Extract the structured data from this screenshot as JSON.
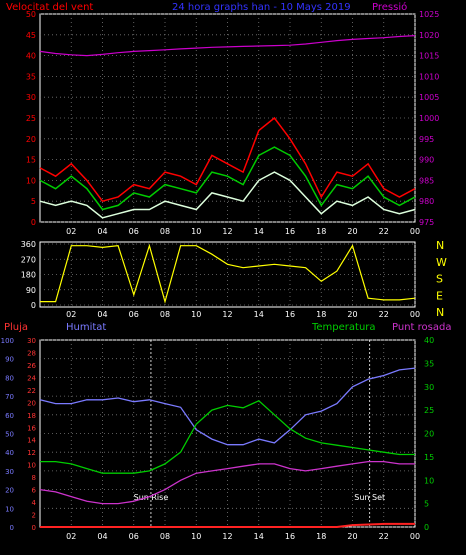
{
  "chart_data": [
    {
      "type": "line",
      "title": "24 hora graphs han - 10 Mays 2019",
      "left_axis_label": "Velocitat del vent",
      "right_axis_label": "Pressió",
      "left_range": [
        0,
        50
      ],
      "left_ticks": [
        "0",
        "5",
        "10",
        "15",
        "20",
        "25",
        "30",
        "35",
        "40",
        "45",
        "50"
      ],
      "right_range": [
        975,
        1025
      ],
      "right_ticks": [
        "975",
        "980",
        "985",
        "990",
        "995",
        "1000",
        "1005",
        "1010",
        "1015",
        "1020",
        "1025"
      ],
      "x_ticks": [
        "02",
        "04",
        "06",
        "08",
        "10",
        "12",
        "14",
        "16",
        "18",
        "20",
        "22",
        "00"
      ],
      "x": [
        0,
        1,
        2,
        3,
        4,
        5,
        6,
        7,
        8,
        9,
        10,
        11,
        12,
        13,
        14,
        15,
        16,
        17,
        18,
        19,
        20,
        21,
        22,
        23,
        24
      ],
      "series": [
        {
          "color": "#ff0000",
          "values": [
            13,
            11,
            14,
            10,
            5,
            6,
            9,
            8,
            12,
            11,
            9,
            16,
            14,
            12,
            22,
            25,
            20,
            14,
            6,
            12,
            11,
            14,
            8,
            6,
            8
          ]
        },
        {
          "color": "#00cc00",
          "values": [
            10,
            8,
            11,
            8,
            3,
            4,
            7,
            6,
            9,
            8,
            7,
            12,
            11,
            9,
            16,
            18,
            16,
            11,
            4,
            9,
            8,
            11,
            6,
            4,
            6
          ]
        },
        {
          "color": "#ddffdd",
          "values": [
            5,
            4,
            5,
            4,
            1,
            2,
            3,
            3,
            5,
            4,
            3,
            7,
            6,
            5,
            10,
            12,
            10,
            6,
            2,
            5,
            4,
            6,
            3,
            2,
            3
          ]
        },
        {
          "color": "#cc00cc",
          "axis": "right",
          "values": [
            1016,
            1015.5,
            1015.2,
            1015,
            1015.3,
            1015.7,
            1016,
            1016.2,
            1016.4,
            1016.6,
            1016.8,
            1017,
            1017.1,
            1017.2,
            1017.3,
            1017.4,
            1017.5,
            1017.8,
            1018.2,
            1018.6,
            1018.9,
            1019.1,
            1019.3,
            1019.6,
            1019.8
          ]
        }
      ]
    },
    {
      "type": "line",
      "left_range": [
        0,
        360
      ],
      "left_ticks": [
        "0",
        "90",
        "180",
        "270",
        "360"
      ],
      "right_labels": [
        "N",
        "W",
        "S",
        "E",
        "N"
      ],
      "x_ticks": [
        "02",
        "04",
        "06",
        "08",
        "10",
        "12",
        "14",
        "16",
        "18",
        "20",
        "22",
        "00"
      ],
      "x": [
        0,
        1,
        2,
        3,
        4,
        5,
        6,
        7,
        8,
        9,
        10,
        11,
        12,
        13,
        14,
        15,
        16,
        17,
        18,
        19,
        20,
        21,
        22,
        23,
        24
      ],
      "series": [
        {
          "color": "#ffff00",
          "values": [
            20,
            20,
            350,
            350,
            340,
            350,
            60,
            350,
            20,
            350,
            350,
            300,
            240,
            220,
            230,
            240,
            230,
            220,
            140,
            200,
            350,
            40,
            30,
            30,
            40
          ]
        }
      ]
    },
    {
      "type": "line",
      "left_label_1": "Pluja",
      "left_label_2": "Humitat",
      "right_label_1": "Temperatura",
      "right_label_2": "Punt rosada",
      "humidity_range": [
        0,
        100
      ],
      "humidity_ticks": [
        "0",
        "10",
        "20",
        "30",
        "40",
        "50",
        "60",
        "70",
        "80",
        "90",
        "100"
      ],
      "rain_range": [
        0,
        30
      ],
      "rain_ticks": [
        "0",
        "2",
        "4",
        "6",
        "8",
        "10",
        "12",
        "14",
        "16",
        "18",
        "20",
        "22",
        "24",
        "26",
        "28",
        "30"
      ],
      "temp_range": [
        0,
        40
      ],
      "temp_ticks": [
        "0",
        "5",
        "10",
        "15",
        "20",
        "25",
        "30",
        "35",
        "40"
      ],
      "x_ticks": [
        "02",
        "04",
        "06",
        "08",
        "10",
        "12",
        "14",
        "16",
        "18",
        "20",
        "22",
        "00"
      ],
      "x": [
        0,
        1,
        2,
        3,
        4,
        5,
        6,
        7,
        8,
        9,
        10,
        11,
        12,
        13,
        14,
        15,
        16,
        17,
        18,
        19,
        20,
        21,
        22,
        23,
        24
      ],
      "annotations": [
        {
          "label": "Sun Rise",
          "x": 7.1
        },
        {
          "label": "Sun Set",
          "x": 21.1
        }
      ],
      "series": [
        {
          "color": "#7a7aff",
          "axis": "humidity",
          "values": [
            68,
            66,
            66,
            68,
            68,
            69,
            67,
            68,
            66,
            64,
            52,
            47,
            44,
            44,
            47,
            45,
            52,
            60,
            62,
            66,
            75,
            79,
            81,
            84,
            85
          ]
        },
        {
          "color": "#00cc00",
          "axis": "temp",
          "values": [
            14,
            14,
            13.5,
            12.5,
            11.5,
            11.5,
            11.5,
            12,
            13.5,
            16,
            22,
            25,
            26,
            25.5,
            27,
            24,
            21,
            19,
            18,
            17.5,
            17,
            16.5,
            16,
            15.5,
            15.5
          ]
        },
        {
          "color": "#cc33cc",
          "axis": "temp",
          "values": [
            8,
            7.5,
            6.5,
            5.5,
            5,
            5,
            5.5,
            6.5,
            8,
            10,
            11.5,
            12,
            12.5,
            13,
            13.5,
            13.5,
            12.5,
            12,
            12.5,
            13,
            13.5,
            14,
            14,
            13.5,
            13.5
          ]
        },
        {
          "color": "#ff2222",
          "axis": "rain",
          "values": [
            0,
            0,
            0,
            0,
            0,
            0,
            0,
            0,
            0,
            0,
            0,
            0,
            0,
            0,
            0,
            0,
            0,
            0,
            0,
            0,
            0.3,
            0.4,
            0.5,
            0.5,
            0.5
          ]
        }
      ]
    }
  ]
}
